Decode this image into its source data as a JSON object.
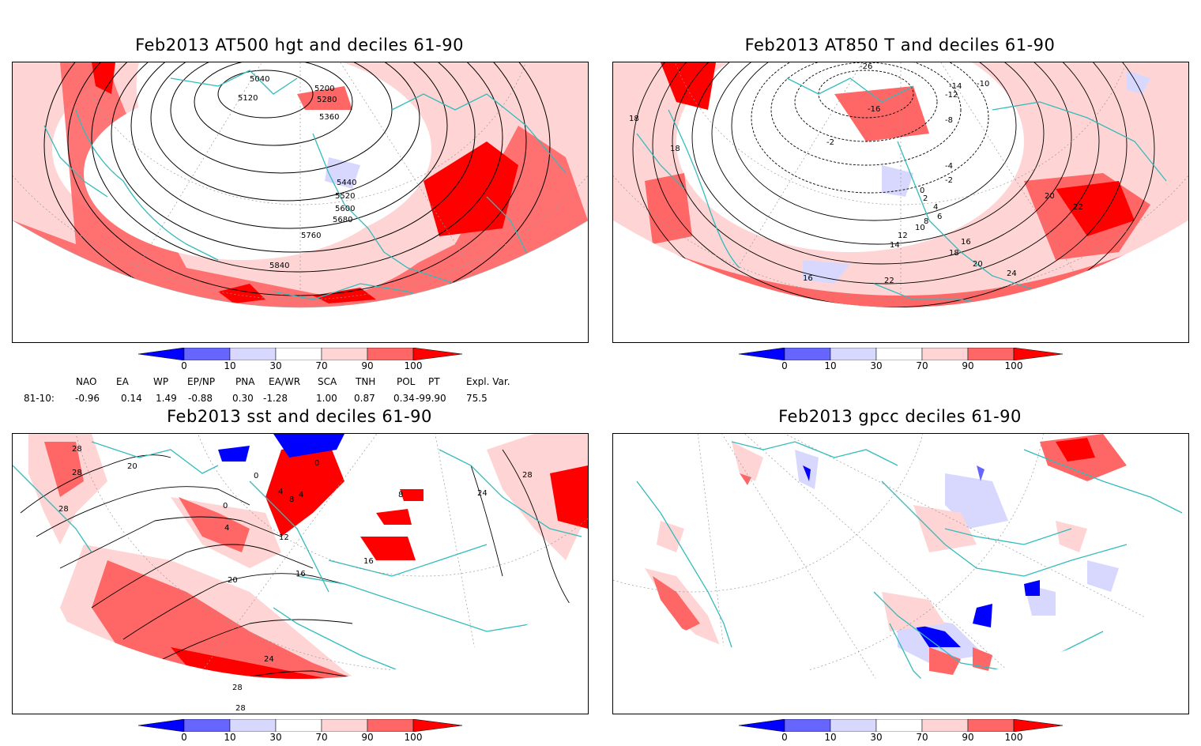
{
  "panels": [
    {
      "id": "p1",
      "title": "Feb2013 AT500 hgt and deciles 61-90",
      "contour_labels": [
        "5040",
        "5120",
        "5200",
        "5280",
        "5360",
        "5440",
        "5520",
        "5600",
        "5680",
        "5760",
        "5840"
      ]
    },
    {
      "id": "p2",
      "title": "Feb2013 AT850 T and deciles 61-90",
      "contour_labels": [
        "-26",
        "-14",
        "-12",
        "-10",
        "-16",
        "-8",
        "-2",
        "-4",
        "-2",
        "0",
        "2",
        "4",
        "6",
        "8",
        "10",
        "12",
        "14",
        "16",
        "18",
        "20",
        "22",
        "24",
        "18",
        "16",
        "20",
        "22",
        "18"
      ]
    },
    {
      "id": "p3",
      "title": "Feb2013 sst and deciles 61-90",
      "contour_labels": [
        "28",
        "28",
        "28",
        "20",
        "0",
        "0",
        "4",
        "8",
        "4",
        "0",
        "4",
        "12",
        "16",
        "20",
        "24",
        "28",
        "28",
        "24",
        "28",
        "8",
        "16"
      ]
    },
    {
      "id": "p4",
      "title": "Feb2013 gpcc deciles 61-90",
      "contour_labels": []
    }
  ],
  "colorbar": {
    "labels": [
      "0",
      "10",
      "30",
      "70",
      "90",
      "100"
    ],
    "colors": [
      "#0000ff",
      "#6666ff",
      "#d8d8ff",
      "#ffffff",
      "#ffd4d4",
      "#ff6666",
      "#ff0000"
    ]
  },
  "indices": {
    "headers": [
      "NAO",
      "EA",
      "WP",
      "EP/NP",
      "PNA",
      "EA/WR",
      "SCA",
      "TNH",
      "POL",
      "PT",
      "Expl. Var."
    ],
    "row_label": "81-10:",
    "values": [
      "-0.96",
      "0.14",
      "1.49",
      "-0.88",
      "0.30",
      "-1.28",
      "1.00",
      "0.87",
      "0.34",
      "-99.90",
      "75.5"
    ]
  }
}
